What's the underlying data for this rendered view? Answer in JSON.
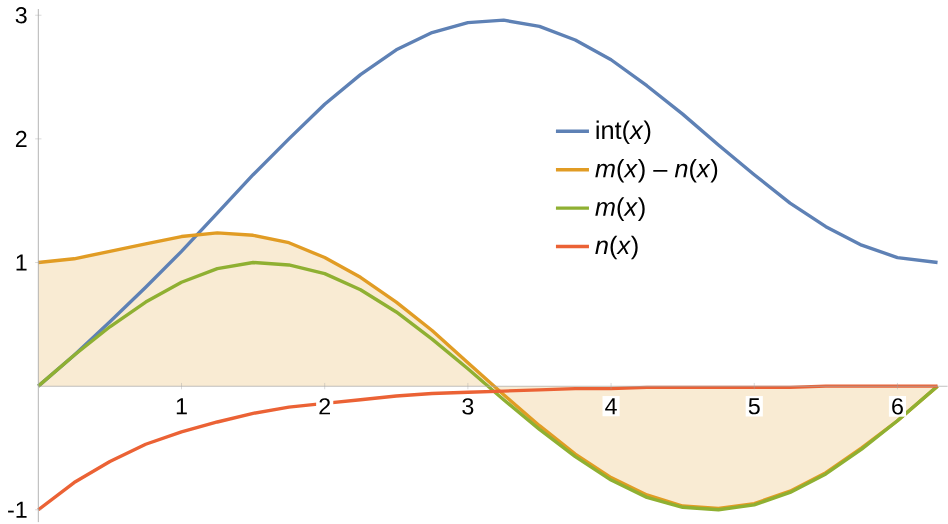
{
  "chart_data": {
    "type": "line",
    "x": [
      0,
      0.25,
      0.5,
      0.75,
      1,
      1.25,
      1.5,
      1.75,
      2,
      2.25,
      2.5,
      2.75,
      3,
      3.25,
      3.5,
      3.75,
      4,
      4.25,
      4.5,
      4.75,
      5,
      5.25,
      5.5,
      5.75,
      6,
      6.28
    ],
    "series": [
      {
        "name": "int(*x*)",
        "color": "#5e81b5",
        "values": [
          0,
          0.25,
          0.52,
          0.8,
          1.09,
          1.4,
          1.71,
          2.0,
          2.28,
          2.52,
          2.72,
          2.86,
          2.94,
          2.96,
          2.91,
          2.8,
          2.64,
          2.43,
          2.2,
          1.95,
          1.71,
          1.48,
          1.29,
          1.14,
          1.04,
          1.0
        ]
      },
      {
        "name": "*m*(*x*) – *n*(*x*)",
        "type": "area",
        "color": "#e19c24",
        "values": [
          1,
          1.03,
          1.09,
          1.15,
          1.21,
          1.24,
          1.22,
          1.16,
          1.04,
          0.88,
          0.68,
          0.45,
          0.19,
          -0.07,
          -0.32,
          -0.55,
          -0.74,
          -0.88,
          -0.97,
          -0.99,
          -0.95,
          -0.85,
          -0.7,
          -0.5,
          -0.28,
          0
        ]
      },
      {
        "name": "*m*(*x*)",
        "color": "#8fb032",
        "values": [
          0,
          0.25,
          0.48,
          0.68,
          0.84,
          0.95,
          1.0,
          0.98,
          0.91,
          0.78,
          0.6,
          0.38,
          0.14,
          -0.11,
          -0.35,
          -0.57,
          -0.76,
          -0.9,
          -0.98,
          -1.0,
          -0.96,
          -0.86,
          -0.71,
          -0.51,
          -0.28,
          0
        ]
      },
      {
        "name": "*n*(*x*)",
        "color": "#eb6235",
        "values": [
          -1,
          -0.78,
          -0.61,
          -0.47,
          -0.37,
          -0.29,
          -0.22,
          -0.17,
          -0.14,
          -0.11,
          -0.08,
          -0.06,
          -0.05,
          -0.04,
          -0.03,
          -0.02,
          -0.02,
          -0.01,
          -0.01,
          -0.01,
          -0.01,
          -0.01,
          0,
          0,
          0,
          0
        ]
      }
    ],
    "xlim": [
      0,
      6.35
    ],
    "ylim": [
      -1.1,
      3.05
    ],
    "xticks": [
      1,
      2,
      3,
      4,
      5,
      6
    ],
    "yticks": [
      -1,
      1,
      2,
      3
    ],
    "legend": "top",
    "grid": false
  }
}
